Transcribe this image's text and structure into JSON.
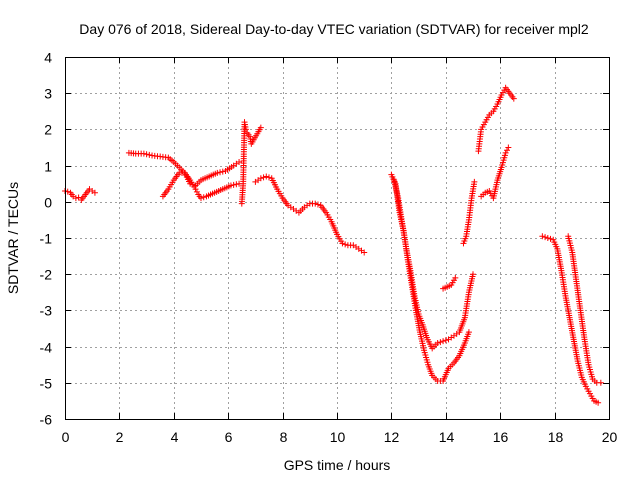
{
  "chart_data": {
    "type": "scatter",
    "title": "Day 076 of 2018, Sidereal Day-to-day VTEC variation (SDTVAR) for receiver mpl2",
    "xlabel": "GPS time / hours",
    "ylabel": "SDTVAR / TECUs",
    "xlim": [
      0,
      20
    ],
    "ylim": [
      -6,
      4
    ],
    "xticks": [
      "0",
      "2",
      "4",
      "6",
      "8",
      "10",
      "12",
      "14",
      "16",
      "18",
      "20"
    ],
    "yticks": [
      "-6",
      "-5",
      "-4",
      "-3",
      "-2",
      "-1",
      "0",
      "1",
      "2",
      "3",
      "4"
    ],
    "grid": true,
    "marker": "plus",
    "color": "#ff0000",
    "series": [
      {
        "name": "seg1",
        "points": [
          [
            0.0,
            0.3
          ],
          [
            0.1,
            0.28
          ],
          [
            0.2,
            0.25
          ],
          [
            0.3,
            0.15
          ],
          [
            0.4,
            0.1
          ],
          [
            0.5,
            0.12
          ],
          [
            0.6,
            0.05
          ],
          [
            0.7,
            0.15
          ],
          [
            0.8,
            0.25
          ],
          [
            0.9,
            0.35
          ],
          [
            1.0,
            0.3
          ],
          [
            1.1,
            0.25
          ]
        ]
      },
      {
        "name": "seg2",
        "points": [
          [
            2.35,
            1.35
          ],
          [
            2.6,
            1.33
          ],
          [
            2.9,
            1.33
          ],
          [
            3.2,
            1.28
          ],
          [
            3.5,
            1.25
          ],
          [
            3.8,
            1.22
          ],
          [
            4.0,
            1.1
          ],
          [
            4.2,
            0.95
          ],
          [
            4.4,
            0.8
          ],
          [
            4.6,
            0.6
          ],
          [
            4.8,
            0.35
          ],
          [
            4.9,
            0.2
          ],
          [
            5.0,
            0.1
          ],
          [
            5.2,
            0.15
          ],
          [
            5.5,
            0.25
          ],
          [
            5.8,
            0.35
          ],
          [
            6.1,
            0.45
          ],
          [
            6.4,
            0.5
          ]
        ]
      },
      {
        "name": "seg3",
        "points": [
          [
            3.6,
            0.15
          ],
          [
            3.8,
            0.35
          ],
          [
            4.0,
            0.6
          ],
          [
            4.2,
            0.8
          ],
          [
            4.4,
            0.8
          ],
          [
            4.6,
            0.5
          ],
          [
            4.8,
            0.45
          ],
          [
            5.0,
            0.6
          ],
          [
            5.3,
            0.7
          ],
          [
            5.6,
            0.8
          ],
          [
            5.9,
            0.85
          ],
          [
            6.2,
            1.0
          ],
          [
            6.4,
            1.1
          ]
        ]
      },
      {
        "name": "seg4",
        "points": [
          [
            6.5,
            -0.05
          ],
          [
            6.55,
            0.5
          ],
          [
            6.6,
            2.2
          ],
          [
            6.65,
            2.0
          ],
          [
            6.7,
            1.9
          ],
          [
            6.8,
            1.8
          ],
          [
            6.85,
            1.6
          ],
          [
            7.2,
            2.05
          ]
        ]
      },
      {
        "name": "seg5",
        "points": [
          [
            7.0,
            0.55
          ],
          [
            7.2,
            0.65
          ],
          [
            7.4,
            0.7
          ],
          [
            7.6,
            0.65
          ],
          [
            7.8,
            0.35
          ],
          [
            8.0,
            0.1
          ],
          [
            8.2,
            -0.1
          ],
          [
            8.4,
            -0.2
          ],
          [
            8.6,
            -0.3
          ],
          [
            8.8,
            -0.15
          ],
          [
            9.0,
            -0.05
          ],
          [
            9.2,
            -0.05
          ],
          [
            9.4,
            -0.1
          ],
          [
            9.6,
            -0.3
          ],
          [
            9.8,
            -0.55
          ],
          [
            10.0,
            -0.9
          ],
          [
            10.2,
            -1.15
          ],
          [
            10.4,
            -1.2
          ],
          [
            10.6,
            -1.2
          ],
          [
            10.8,
            -1.3
          ],
          [
            11.0,
            -1.4
          ]
        ]
      },
      {
        "name": "seg6",
        "points": [
          [
            12.0,
            0.75
          ],
          [
            12.15,
            0.5
          ],
          [
            12.3,
            -0.3
          ],
          [
            12.45,
            -0.8
          ],
          [
            12.6,
            -1.6
          ],
          [
            12.75,
            -2.3
          ],
          [
            12.9,
            -3.0
          ],
          [
            13.05,
            -3.6
          ],
          [
            13.2,
            -4.1
          ],
          [
            13.35,
            -4.5
          ],
          [
            13.5,
            -4.8
          ],
          [
            13.7,
            -4.95
          ],
          [
            13.9,
            -4.95
          ],
          [
            14.1,
            -4.6
          ],
          [
            14.3,
            -4.45
          ],
          [
            14.5,
            -4.25
          ],
          [
            14.7,
            -3.9
          ],
          [
            14.85,
            -3.6
          ]
        ]
      },
      {
        "name": "seg7",
        "points": [
          [
            12.1,
            0.6
          ],
          [
            12.25,
            0.1
          ],
          [
            12.4,
            -0.6
          ],
          [
            12.55,
            -1.3
          ],
          [
            12.7,
            -1.9
          ],
          [
            12.85,
            -2.6
          ],
          [
            13.0,
            -3.1
          ],
          [
            13.15,
            -3.4
          ],
          [
            13.3,
            -3.75
          ],
          [
            13.5,
            -4.05
          ],
          [
            13.7,
            -3.9
          ],
          [
            13.9,
            -3.85
          ],
          [
            14.1,
            -3.8
          ],
          [
            14.3,
            -3.7
          ],
          [
            14.5,
            -3.6
          ],
          [
            14.7,
            -3.2
          ],
          [
            14.85,
            -2.5
          ],
          [
            15.0,
            -2.0
          ]
        ]
      },
      {
        "name": "seg8",
        "points": [
          [
            13.9,
            -2.4
          ],
          [
            14.05,
            -2.35
          ],
          [
            14.2,
            -2.3
          ],
          [
            14.35,
            -2.1
          ]
        ]
      },
      {
        "name": "seg9",
        "points": [
          [
            14.65,
            -1.15
          ],
          [
            14.75,
            -0.95
          ],
          [
            14.85,
            -0.5
          ],
          [
            14.95,
            0.1
          ],
          [
            15.05,
            0.55
          ]
        ]
      },
      {
        "name": "seg10",
        "points": [
          [
            15.2,
            1.4
          ],
          [
            15.3,
            2.0
          ],
          [
            15.45,
            2.2
          ],
          [
            15.6,
            2.4
          ],
          [
            15.75,
            2.5
          ],
          [
            15.9,
            2.7
          ],
          [
            16.05,
            2.95
          ],
          [
            16.2,
            3.15
          ],
          [
            16.35,
            3.0
          ],
          [
            16.5,
            2.85
          ]
        ]
      },
      {
        "name": "seg11",
        "points": [
          [
            15.3,
            0.15
          ],
          [
            15.45,
            0.25
          ],
          [
            15.6,
            0.3
          ],
          [
            15.75,
            0.1
          ],
          [
            15.9,
            0.6
          ],
          [
            16.05,
            0.95
          ],
          [
            16.2,
            1.35
          ],
          [
            16.3,
            1.5
          ]
        ]
      },
      {
        "name": "seg12",
        "points": [
          [
            17.55,
            -0.95
          ],
          [
            17.75,
            -1.0
          ],
          [
            17.95,
            -1.05
          ],
          [
            18.1,
            -1.3
          ],
          [
            18.25,
            -1.9
          ],
          [
            18.4,
            -2.6
          ],
          [
            18.55,
            -3.2
          ],
          [
            18.7,
            -3.8
          ],
          [
            18.85,
            -4.4
          ],
          [
            19.0,
            -4.85
          ],
          [
            19.15,
            -5.1
          ],
          [
            19.3,
            -5.3
          ],
          [
            19.45,
            -5.5
          ],
          [
            19.6,
            -5.55
          ]
        ]
      },
      {
        "name": "seg13",
        "points": [
          [
            18.5,
            -0.95
          ],
          [
            18.65,
            -1.4
          ],
          [
            18.8,
            -2.2
          ],
          [
            18.95,
            -3.0
          ],
          [
            19.1,
            -3.8
          ],
          [
            19.25,
            -4.5
          ],
          [
            19.4,
            -4.9
          ],
          [
            19.55,
            -5.0
          ],
          [
            19.7,
            -5.0
          ]
        ]
      }
    ]
  }
}
